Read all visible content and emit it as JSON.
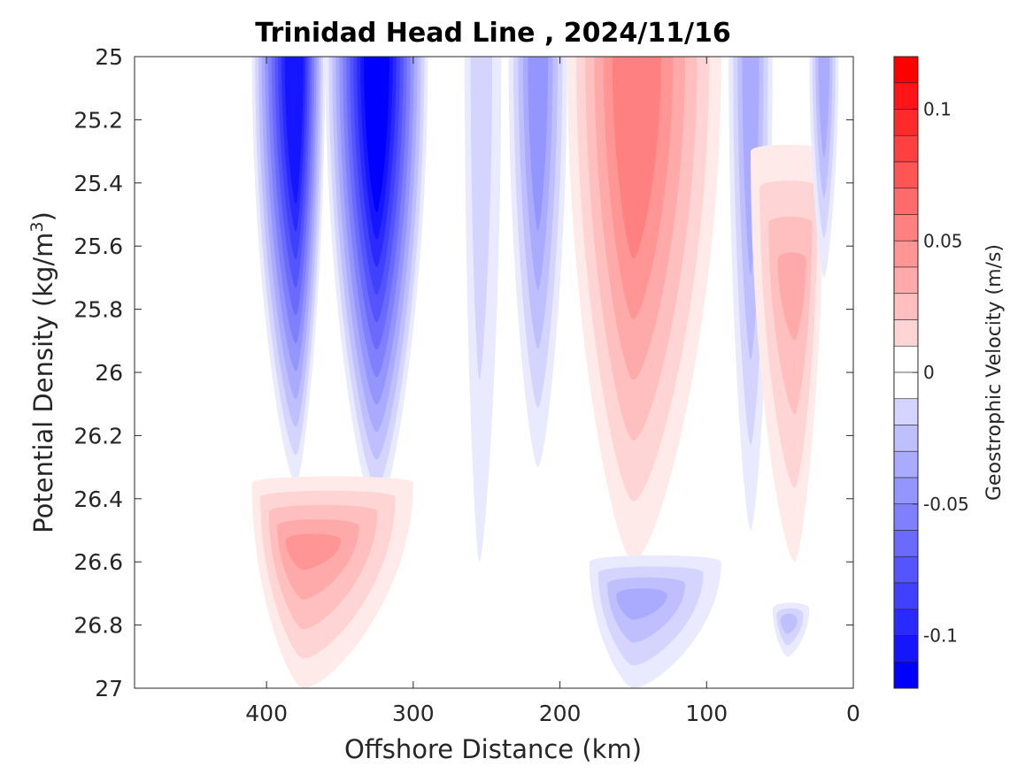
{
  "chart_data": {
    "type": "heatmap",
    "subtype": "filled-contour",
    "title": "Trinidad Head Line , 2024/11/16",
    "xlabel": "Offshore Distance (km)",
    "ylabel": "Potential Density (kg/m",
    "ylabel_superscript": "3",
    "ylabel_suffix": ")",
    "xlim": [
      490,
      0
    ],
    "ylim": [
      25,
      27
    ],
    "x_reversed": true,
    "y_reversed": true,
    "xticks": [
      400,
      300,
      200,
      100,
      0
    ],
    "xtick_labels": [
      "400",
      "300",
      "200",
      "100",
      "0"
    ],
    "yticks": [
      25,
      25.2,
      25.4,
      25.6,
      25.8,
      26,
      26.2,
      26.4,
      26.6,
      26.8,
      27
    ],
    "ytick_labels": [
      "25",
      "25.2",
      "25.4",
      "25.6",
      "25.8",
      "26",
      "26.2",
      "26.4",
      "26.6",
      "26.8",
      "27"
    ],
    "colorbar": {
      "label": "Geostrophic Velocity (m/s)",
      "range": [
        -0.12,
        0.12
      ],
      "ticks": [
        0.1,
        0.05,
        0,
        -0.05,
        -0.1
      ],
      "tick_labels": [
        "0.1",
        "0.05",
        "0",
        "-0.05",
        "-0.1"
      ],
      "levels": [
        0.12,
        0.11,
        0.1,
        0.09,
        0.08,
        0.07,
        0.06,
        0.05,
        0.04,
        0.03,
        0.02,
        0.01,
        0,
        -0.01,
        -0.02,
        -0.03,
        -0.04,
        -0.05,
        -0.06,
        -0.07,
        -0.08,
        -0.09,
        -0.1,
        -0.11,
        -0.12
      ],
      "positive_color": "#ff0000",
      "negative_color": "#0000ff",
      "zero_color": "#ffffff"
    },
    "grid": false,
    "features": [
      {
        "sign": "negative",
        "peak_velocity": -0.11,
        "x_range": [
          410,
          360
        ],
        "density_top": 25.0,
        "density_bottom": 26.35,
        "core_distance": 380
      },
      {
        "sign": "negative",
        "peak_velocity": -0.12,
        "x_range": [
          360,
          290
        ],
        "density_top": 25.0,
        "density_bottom": 26.45,
        "core_distance": 325
      },
      {
        "sign": "negative",
        "peak_velocity": -0.02,
        "x_range": [
          265,
          240
        ],
        "density_top": 25.0,
        "density_bottom": 26.6,
        "core_distance": 255
      },
      {
        "sign": "negative",
        "peak_velocity": -0.05,
        "x_range": [
          235,
          195
        ],
        "density_top": 25.0,
        "density_bottom": 26.3,
        "core_distance": 215
      },
      {
        "sign": "positive",
        "peak_velocity": 0.06,
        "x_range": [
          195,
          90
        ],
        "density_top": 25.0,
        "density_bottom": 26.6,
        "core_distance": 150
      },
      {
        "sign": "negative",
        "peak_velocity": -0.04,
        "x_range": [
          85,
          55
        ],
        "density_top": 25.0,
        "density_bottom": 26.5,
        "core_distance": 70
      },
      {
        "sign": "positive",
        "peak_velocity": 0.04,
        "x_range": [
          70,
          20
        ],
        "density_top": 25.3,
        "density_bottom": 26.6,
        "core_distance": 40
      },
      {
        "sign": "negative",
        "peak_velocity": -0.04,
        "x_range": [
          30,
          10
        ],
        "density_top": 25.0,
        "density_bottom": 25.7,
        "core_distance": 20
      },
      {
        "sign": "positive",
        "peak_velocity": 0.05,
        "x_range": [
          410,
          300
        ],
        "density_top": 26.35,
        "density_bottom": 27.0,
        "core_distance": 375
      },
      {
        "sign": "negative",
        "peak_velocity": -0.04,
        "x_range": [
          180,
          90
        ],
        "density_top": 26.6,
        "density_bottom": 27.0,
        "core_distance": 150
      },
      {
        "sign": "negative",
        "peak_velocity": -0.03,
        "x_range": [
          55,
          30
        ],
        "density_top": 26.75,
        "density_bottom": 26.9,
        "core_distance": 45
      }
    ]
  }
}
